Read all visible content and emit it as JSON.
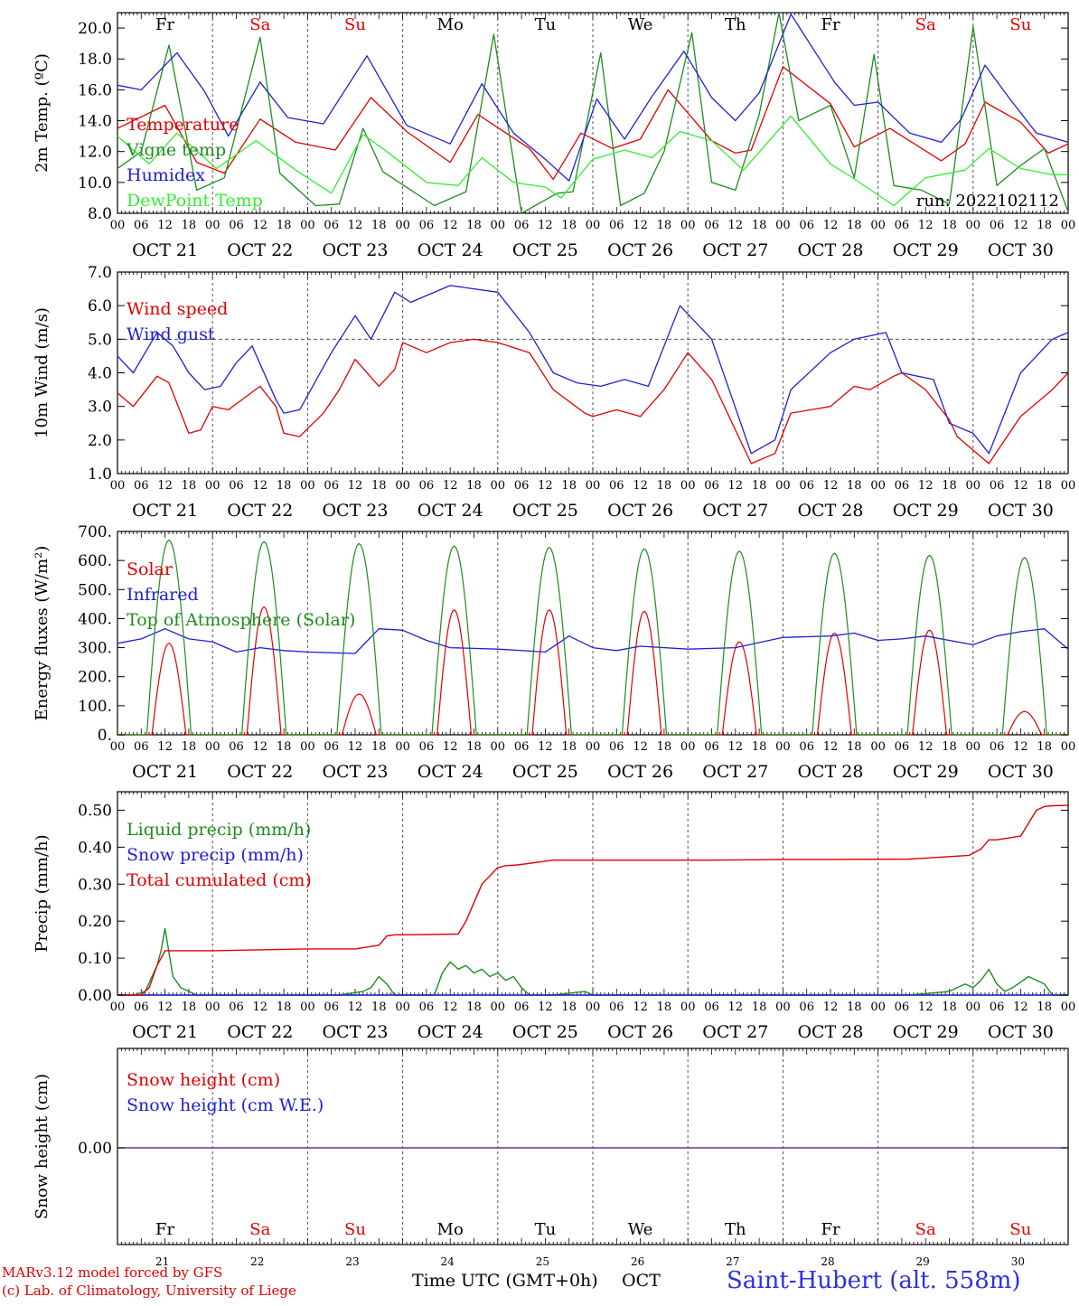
{
  "footer": {
    "credit_line1": "MARv3.12 model forced by GFS",
    "credit_line2": "(c) Lab. of Climatology, University of Liege",
    "time_label": "Time UTC (GMT+0h)",
    "month_label": "OCT",
    "station": "Saint-Hubert (alt. 558m)"
  },
  "colors": {
    "red": "#e00000",
    "green": "#1e8c1e",
    "blue": "#2020d0",
    "lightgreen": "#33ee33",
    "purple": "#7030a0",
    "grid": "#555555"
  },
  "days": {
    "weekdays": [
      "Fr",
      "Sa",
      "Su",
      "Mo",
      "Tu",
      "We",
      "Th",
      "Fr",
      "Sa",
      "Su"
    ],
    "weekend": [
      false,
      true,
      true,
      false,
      false,
      false,
      false,
      false,
      true,
      true
    ],
    "dates": [
      "OCT 21",
      "OCT 22",
      "OCT 23",
      "OCT 24",
      "OCT 25",
      "OCT 26",
      "OCT 27",
      "OCT 28",
      "OCT 29",
      "OCT 30"
    ],
    "daynums": [
      "21",
      "22",
      "23",
      "24",
      "25",
      "26",
      "27",
      "28",
      "29",
      "30"
    ],
    "hour_ticks": [
      "00",
      "06",
      "12",
      "18"
    ]
  },
  "chart_data": [
    {
      "type": "line",
      "ylabel": "2m Temp. (ºC)",
      "ylim": [
        8,
        21
      ],
      "yticks": [
        "8.0",
        "10.0",
        "12.0",
        "14.0",
        "16.0",
        "18.0",
        "20.0"
      ],
      "annotation": "run: 2022102112",
      "x_unit": "hours since OCT 21 00 UTC",
      "series": [
        {
          "name": "Temperature",
          "color": "red",
          "x": [
            0,
            12,
            20,
            27,
            36,
            45,
            55,
            64,
            73,
            84,
            91,
            104,
            110,
            117,
            125,
            132,
            139,
            150,
            156,
            160,
            168,
            180,
            186,
            195,
            208,
            214,
            219,
            228,
            235,
            240
          ],
          "y": [
            13.5,
            15,
            11.3,
            10.6,
            14.1,
            12.6,
            12.1,
            15.5,
            13.3,
            11.3,
            14.4,
            12.2,
            10.2,
            13.2,
            12.2,
            12.8,
            16,
            12.7,
            11.9,
            12.1,
            17.5,
            15.1,
            12.3,
            13.5,
            11.4,
            12.5,
            15.2,
            13.9,
            11.9,
            12.5
          ]
        },
        {
          "name": "Vigne temp",
          "color": "green",
          "x": [
            0,
            6,
            13,
            20,
            27,
            36,
            41,
            50,
            56,
            62,
            67,
            80,
            88,
            95,
            102,
            111,
            115,
            122,
            127,
            133,
            138,
            145,
            150,
            156,
            162,
            167,
            172,
            180,
            186,
            191,
            196,
            203,
            210,
            216,
            222,
            228,
            234,
            240
          ],
          "y": [
            10.9,
            12,
            18.9,
            9.5,
            10.3,
            19.4,
            10.6,
            8.5,
            8.6,
            13.5,
            10.7,
            8.5,
            9.4,
            19.6,
            8,
            9.3,
            9.4,
            18.4,
            8.5,
            9.3,
            12,
            19.7,
            10,
            9.5,
            14.4,
            21,
            14,
            15,
            10.3,
            18.3,
            9.8,
            9.5,
            8.6,
            20.1,
            9.8,
            11.1,
            12.2,
            8.1
          ]
        },
        {
          "name": "Humidex",
          "color": "blue",
          "x": [
            0,
            6,
            15,
            22,
            28,
            36,
            43,
            52,
            63,
            73,
            84,
            92,
            100,
            108,
            114,
            121,
            128,
            135,
            143,
            150,
            156,
            162,
            170,
            181,
            186,
            192,
            200,
            208,
            213,
            219,
            225,
            232,
            240
          ],
          "y": [
            16.3,
            16,
            18.4,
            15.9,
            13,
            16.5,
            14.2,
            13.8,
            18.2,
            13.7,
            12.5,
            16.4,
            13.2,
            11.5,
            10.1,
            15.4,
            12.8,
            15.6,
            18.5,
            15.5,
            14,
            15.8,
            20.9,
            16.5,
            15,
            15.2,
            13.2,
            12.6,
            14.1,
            17.6,
            15.5,
            13.2,
            12.6
          ]
        },
        {
          "name": "DewPoint Temp",
          "color": "lightgreen",
          "x": [
            0,
            8,
            15,
            25,
            35,
            45,
            54,
            62,
            68,
            78,
            86,
            92,
            100,
            108,
            112,
            120,
            128,
            135,
            142,
            150,
            158,
            170,
            180,
            185,
            196,
            204,
            214,
            220,
            228,
            236,
            240
          ],
          "y": [
            13,
            11.2,
            13.2,
            10.9,
            12.7,
            10.8,
            9.3,
            13.1,
            12,
            10,
            9.8,
            11.6,
            10,
            9.7,
            9,
            11.5,
            12.1,
            11.6,
            13.3,
            12.7,
            10.8,
            14.3,
            11.2,
            10.4,
            8.5,
            10.3,
            10.8,
            12.2,
            10.9,
            10.5,
            10.5
          ]
        }
      ]
    },
    {
      "type": "line",
      "ylabel": "10m Wind (m/s)",
      "ylim": [
        1,
        7
      ],
      "yticks": [
        "1.0",
        "2.0",
        "3.0",
        "4.0",
        "5.0",
        "6.0",
        "7.0"
      ],
      "reference_y": 5,
      "x_unit": "hours since OCT 21 00 UTC",
      "series": [
        {
          "name": "Wind speed",
          "color": "red",
          "x": [
            0,
            4,
            10,
            13,
            18,
            21,
            24,
            28,
            36,
            40,
            42,
            46,
            52,
            56,
            60,
            66,
            70,
            72,
            78,
            84,
            90,
            96,
            104,
            110,
            118,
            120,
            126,
            132,
            138,
            144,
            150,
            160,
            166,
            170,
            180,
            186,
            190,
            196,
            198,
            204,
            210,
            212,
            216,
            220,
            228,
            236,
            240
          ],
          "y": [
            3.4,
            3,
            3.9,
            3.7,
            2.2,
            2.3,
            3,
            2.9,
            3.6,
            3,
            2.2,
            2.1,
            2.8,
            3.5,
            4.4,
            3.6,
            4.1,
            4.9,
            4.6,
            4.9,
            5,
            4.9,
            4.6,
            3.5,
            2.8,
            2.7,
            2.9,
            2.7,
            3.5,
            4.6,
            3.8,
            1.3,
            1.6,
            2.8,
            3,
            3.6,
            3.5,
            3.9,
            4,
            3.5,
            2.6,
            2.1,
            1.7,
            1.3,
            2.7,
            3.5,
            4
          ]
        },
        {
          "name": "Wind gust",
          "color": "blue",
          "x": [
            0,
            4,
            10,
            14,
            18,
            22,
            26,
            30,
            34,
            40,
            42,
            46,
            54,
            60,
            64,
            70,
            74,
            84,
            90,
            96,
            104,
            110,
            116,
            122,
            128,
            134,
            142,
            150,
            160,
            166,
            170,
            180,
            186,
            194,
            198,
            206,
            210,
            216,
            220,
            228,
            236,
            240
          ],
          "y": [
            4.5,
            4,
            5.2,
            4.8,
            4,
            3.5,
            3.6,
            4.3,
            4.8,
            3.2,
            2.8,
            2.9,
            4.6,
            5.7,
            5,
            6.4,
            6.1,
            6.6,
            6.5,
            6.4,
            5.2,
            4,
            3.7,
            3.6,
            3.8,
            3.6,
            6,
            5,
            1.6,
            2,
            3.5,
            4.6,
            5,
            5.2,
            4,
            3.8,
            2.5,
            2.2,
            1.6,
            4,
            5,
            5.2
          ]
        }
      ]
    },
    {
      "type": "line",
      "ylabel": "Energy fluxes (W/m²)",
      "ylim": [
        0,
        700
      ],
      "yticks": [
        "0.",
        "100.",
        "200.",
        "300.",
        "400.",
        "500.",
        "600.",
        "700."
      ],
      "x_unit": "hours since OCT 21 00 UTC",
      "series": [
        {
          "name": "Solar",
          "color": "red",
          "peaks_at_hour_13": [
            315,
            440,
            140,
            430,
            430,
            425,
            320,
            350,
            360,
            80
          ]
        },
        {
          "name": "Infrared",
          "color": "blue",
          "x": [
            0,
            6,
            12,
            18,
            24,
            30,
            36,
            42,
            48,
            60,
            66,
            72,
            78,
            84,
            96,
            108,
            114,
            120,
            126,
            132,
            144,
            156,
            168,
            180,
            186,
            192,
            198,
            204,
            216,
            222,
            228,
            234,
            240
          ],
          "y": [
            315,
            330,
            365,
            330,
            320,
            285,
            300,
            290,
            285,
            280,
            365,
            360,
            325,
            300,
            295,
            285,
            340,
            300,
            290,
            305,
            295,
            300,
            335,
            340,
            350,
            325,
            330,
            340,
            310,
            340,
            355,
            365,
            295
          ]
        },
        {
          "name": "Top of Atmosphere (Solar)",
          "color": "green",
          "peaks_at_hour_13": [
            670,
            665,
            658,
            650,
            645,
            640,
            632,
            625,
            618,
            610
          ]
        }
      ]
    },
    {
      "type": "line",
      "ylabel": "Precip (mm/h)",
      "ylim": [
        0,
        0.55
      ],
      "yticks": [
        "0.00",
        "0.10",
        "0.20",
        "0.30",
        "0.40",
        "0.50"
      ],
      "x_unit": "hours since OCT 21 00 UTC",
      "series": [
        {
          "name": "Liquid precip (mm/h)",
          "color": "green",
          "x": [
            0,
            4,
            7,
            10,
            11,
            12,
            14,
            16,
            18,
            20,
            24,
            56,
            62,
            64,
            66,
            68,
            70,
            74,
            80,
            82,
            84,
            86,
            88,
            90,
            92,
            94,
            96,
            98,
            100,
            102,
            104,
            110,
            118,
            120,
            200,
            210,
            212,
            214,
            216,
            218,
            220,
            222,
            224,
            226,
            230,
            234,
            236,
            240
          ],
          "y": [
            0,
            0,
            0.01,
            0.08,
            0.12,
            0.18,
            0.05,
            0.02,
            0.01,
            0,
            0,
            0,
            0.01,
            0.02,
            0.05,
            0.03,
            0,
            0,
            0,
            0.06,
            0.09,
            0.07,
            0.08,
            0.06,
            0.07,
            0.05,
            0.06,
            0.04,
            0.05,
            0.02,
            0,
            0,
            0.01,
            0,
            0,
            0.01,
            0.02,
            0.03,
            0.02,
            0.04,
            0.07,
            0.03,
            0.01,
            0.02,
            0.05,
            0.03,
            0,
            0
          ]
        },
        {
          "name": "Snow precip (mm/h)",
          "color": "blue",
          "x": [
            0,
            240
          ],
          "y": [
            0,
            0
          ]
        },
        {
          "name": "Total cumulated (cm)",
          "color": "red",
          "x": [
            0,
            6,
            8,
            10,
            12,
            24,
            48,
            60,
            66,
            68,
            70,
            72,
            86,
            88,
            90,
            92,
            96,
            98,
            101,
            110,
            120,
            150,
            168,
            180,
            200,
            215,
            218,
            220,
            222,
            228,
            230,
            232,
            234,
            236,
            240
          ],
          "y": [
            0,
            0,
            0.02,
            0.08,
            0.12,
            0.12,
            0.125,
            0.125,
            0.135,
            0.16,
            0.163,
            0.163,
            0.165,
            0.2,
            0.25,
            0.3,
            0.345,
            0.35,
            0.352,
            0.365,
            0.365,
            0.365,
            0.367,
            0.367,
            0.368,
            0.378,
            0.395,
            0.42,
            0.42,
            0.43,
            0.465,
            0.5,
            0.51,
            0.512,
            0.513
          ]
        }
      ]
    },
    {
      "type": "line",
      "ylabel": "Snow height (cm)",
      "yticks": [
        "0.00"
      ],
      "x_unit": "hours since OCT 21 00 UTC",
      "series": [
        {
          "name": "Snow height (cm)",
          "color": "red",
          "x": [
            0,
            240
          ],
          "y": [
            0,
            0
          ]
        },
        {
          "name": "Snow height (cm W.E.)",
          "color": "blue",
          "x": [
            0,
            240
          ],
          "y": [
            0,
            0
          ]
        }
      ]
    }
  ]
}
